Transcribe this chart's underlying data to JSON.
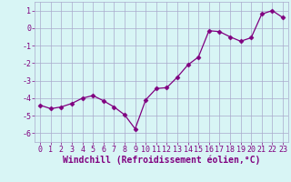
{
  "xlabel": "Windchill (Refroidissement éolien,°C)",
  "x": [
    0,
    1,
    2,
    3,
    4,
    5,
    6,
    7,
    8,
    9,
    10,
    11,
    12,
    13,
    14,
    15,
    16,
    17,
    18,
    19,
    20,
    21,
    22,
    23
  ],
  "y": [
    -4.4,
    -4.6,
    -4.5,
    -4.3,
    -4.0,
    -3.85,
    -4.15,
    -4.5,
    -4.95,
    -5.75,
    -4.1,
    -3.45,
    -3.4,
    -2.8,
    -2.1,
    -1.65,
    -0.15,
    -0.2,
    -0.5,
    -0.75,
    -0.55,
    0.8,
    1.0,
    0.6
  ],
  "line_color": "#800080",
  "marker": "D",
  "marker_size": 2.5,
  "bg_color": "#d8f5f5",
  "grid_color": "#aaaacc",
  "ylim": [
    -6.5,
    1.5
  ],
  "yticks": [
    -6,
    -5,
    -4,
    -3,
    -2,
    -1,
    0,
    1
  ],
  "xlim": [
    -0.5,
    23.5
  ],
  "xticks": [
    0,
    1,
    2,
    3,
    4,
    5,
    6,
    7,
    8,
    9,
    10,
    11,
    12,
    13,
    14,
    15,
    16,
    17,
    18,
    19,
    20,
    21,
    22,
    23
  ],
  "tick_label_fontsize": 6.0,
  "xlabel_fontsize": 7.0,
  "label_color": "#800080"
}
